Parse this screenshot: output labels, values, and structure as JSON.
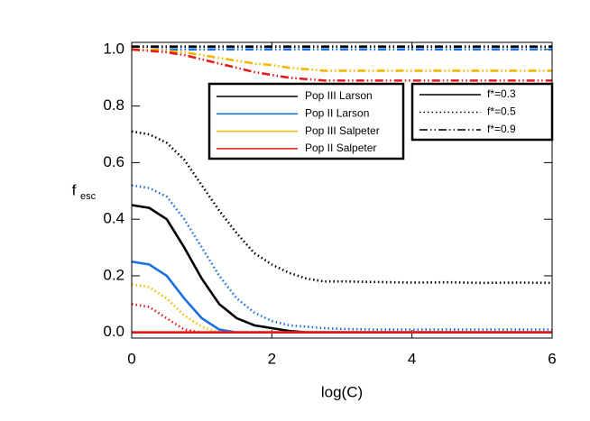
{
  "chart_data": {
    "type": "line",
    "x_label": "log(C)",
    "y_label": "f",
    "y_label_sub": "esc",
    "x": [
      0,
      0.25,
      0.5,
      0.75,
      1,
      1.25,
      1.5,
      1.75,
      2,
      2.25,
      2.5,
      2.75,
      3,
      3.5,
      4,
      4.5,
      5,
      5.5,
      6
    ],
    "xlim": [
      0,
      6
    ],
    "xticks": [
      0,
      2,
      4,
      6
    ],
    "ylim": [
      -0.02,
      1.025
    ],
    "yticks": [
      {
        "value": 0,
        "label": "0.0"
      },
      0.2,
      0.4,
      0.6,
      0.8,
      {
        "value": 1,
        "label": "1.0"
      }
    ],
    "line_styles": [
      {
        "label": "f*=0.3",
        "dash": "solid"
      },
      {
        "label": "f*=0.5",
        "dash": "dotted"
      },
      {
        "label": "f*=0.9",
        "dash": "dashdotdot"
      }
    ],
    "series": [
      {
        "name": "Pop III Larson",
        "color": "#000000",
        "dash": "solid",
        "values": [
          0.45,
          0.44,
          0.4,
          0.3,
          0.19,
          0.1,
          0.05,
          0.025,
          0.015,
          0.005,
          0,
          0,
          0,
          0,
          0,
          0,
          0,
          0,
          0
        ]
      },
      {
        "name": "Pop III Larson",
        "color": "#000000",
        "dash": "dotted",
        "values": [
          0.71,
          0.7,
          0.67,
          0.61,
          0.52,
          0.43,
          0.35,
          0.28,
          0.24,
          0.21,
          0.19,
          0.18,
          0.18,
          0.178,
          0.176,
          0.177,
          0.175,
          0.176,
          0.175
        ]
      },
      {
        "name": "Pop III Larson",
        "color": "#000000",
        "dash": "dashdotdot",
        "values": [
          1.01,
          1.01,
          1.01,
          1.01,
          1.01,
          1.01,
          1.01,
          1.01,
          1.01,
          1.01,
          1.01,
          1.01,
          1.01,
          1.01,
          1.01,
          1.01,
          1.01,
          1.01,
          1.01
        ]
      },
      {
        "name": "Pop II Larson",
        "color": "#1a6fdf",
        "dash": "solid",
        "values": [
          0.25,
          0.24,
          0.2,
          0.12,
          0.05,
          0.01,
          0,
          0,
          0,
          0,
          0,
          0,
          0,
          0,
          0,
          0,
          0,
          0,
          0
        ]
      },
      {
        "name": "Pop II Larson",
        "color": "#1a6fdf",
        "dash": "dotted",
        "values": [
          0.52,
          0.51,
          0.48,
          0.4,
          0.3,
          0.2,
          0.12,
          0.07,
          0.04,
          0.025,
          0.02,
          0.015,
          0.012,
          0.01,
          0.01,
          0.01,
          0.01,
          0.01,
          0.01
        ]
      },
      {
        "name": "Pop II Larson",
        "color": "#1a6fdf",
        "dash": "dashdotdot",
        "values": [
          1.0,
          1.0,
          1.0,
          1.0,
          1.0,
          1.0,
          1.0,
          1.0,
          1.0,
          1.0,
          1.0,
          1.0,
          1.0,
          1.0,
          1.0,
          1.0,
          1.0,
          1.0,
          1.0
        ]
      },
      {
        "name": "Pop III Salpeter",
        "color": "#f5b800",
        "dash": "solid",
        "values": [
          0,
          0,
          0,
          0,
          0,
          0,
          0,
          0,
          0,
          0,
          0,
          0,
          0,
          0,
          0,
          0,
          0,
          0,
          0
        ]
      },
      {
        "name": "Pop III Salpeter",
        "color": "#f5b800",
        "dash": "dotted",
        "values": [
          0.17,
          0.16,
          0.12,
          0.06,
          0.02,
          0,
          0,
          0,
          0,
          0,
          0,
          0,
          0,
          0,
          0,
          0,
          0,
          0,
          0
        ]
      },
      {
        "name": "Pop III Salpeter",
        "color": "#f5b800",
        "dash": "dashdotdot",
        "values": [
          1.0,
          1.0,
          0.995,
          0.99,
          0.98,
          0.97,
          0.96,
          0.95,
          0.945,
          0.935,
          0.93,
          0.925,
          0.925,
          0.925,
          0.925,
          0.925,
          0.925,
          0.925,
          0.925
        ]
      },
      {
        "name": "Pop II Salpeter",
        "color": "#e31a1c",
        "dash": "solid",
        "values": [
          0,
          0,
          0,
          0,
          0,
          0,
          0,
          0,
          0,
          0,
          0,
          0,
          0,
          0,
          0,
          0,
          0,
          0,
          0
        ]
      },
      {
        "name": "Pop II Salpeter",
        "color": "#e31a1c",
        "dash": "dotted",
        "values": [
          0.1,
          0.09,
          0.05,
          0.01,
          0,
          0,
          0,
          0,
          0,
          0,
          0,
          0,
          0,
          0,
          0,
          0,
          0,
          0,
          0
        ]
      },
      {
        "name": "Pop II Salpeter",
        "color": "#e31a1c",
        "dash": "dashdotdot",
        "values": [
          1.0,
          0.995,
          0.99,
          0.98,
          0.965,
          0.95,
          0.935,
          0.92,
          0.91,
          0.9,
          0.895,
          0.89,
          0.89,
          0.89,
          0.89,
          0.89,
          0.89,
          0.89,
          0.89
        ]
      }
    ]
  }
}
